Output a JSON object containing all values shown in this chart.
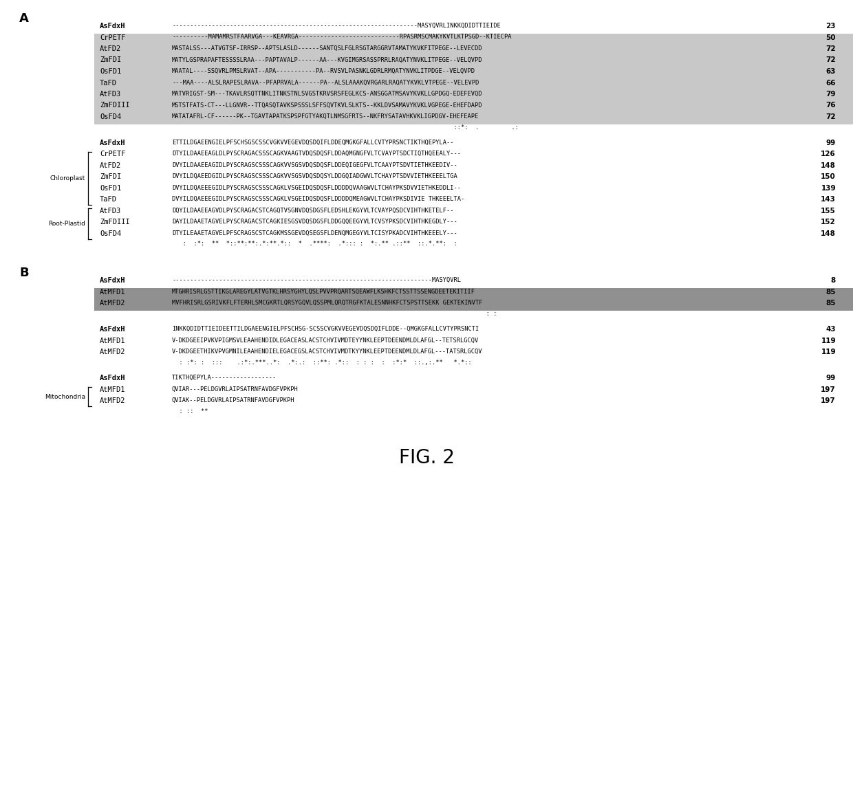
{
  "title": "FIG. 2",
  "bg_color": "#ffffff",
  "highlight_gray": "#c8c8c8",
  "highlight_dark": "#909090",
  "section_A_block1_rows": [
    {
      "name": "AsFdxH",
      "seq": "--------------------------------------------------------------------MASYQVRLINKKQDIDTTIEIDE",
      "num": "23",
      "bold": true,
      "hl": false
    },
    {
      "name": "CrPETF",
      "seq": "----------MAMAMRSTFAARVGA---KEAVRGA----------------------------RPASRMSCMAKYKVTLKTPSGD--KTIECPA",
      "num": "50",
      "bold": false,
      "hl": true
    },
    {
      "name": "AtFD2",
      "seq": "MASTALSS---ATVGTSF-IRRSP--APTSLASLD------SANTQSLFGLRSGTARGGRVTAMATYKVKFITPEGE--LEVECDD",
      "num": "72",
      "bold": false,
      "hl": true
    },
    {
      "name": "ZmFDI",
      "seq": "MATYLGSPRAPAFTESSSSLRAA---PAPTAVALP------AA---KVGIMGRSASSPRRLRAQATYNVKLITPEGE--VELQVPD",
      "num": "72",
      "bold": false,
      "hl": true
    },
    {
      "name": "OsFD1",
      "seq": "MAATAL----SSQVRLPMSLRVAT--APA-----------PA--RVSVLPASNKLGDRLRMQATYNVKLITPDGE--VELQVPD",
      "num": "63",
      "bold": false,
      "hl": true
    },
    {
      "name": "TaFD",
      "seq": "---MAA----ALSLRAPESLRAVA--PFAPRVALA------PA--ALSLAAAKQVRGARLRAQATYKVKLVTPEGE--VELEVPD",
      "num": "66",
      "bold": false,
      "hl": true
    },
    {
      "name": "AtFD3",
      "seq": "MATVRIGST-SM---TKAVLRSQTTNKLITNKSTNLSVGSTKRVSRSFEGLKCS-ANSGGATMSAVYKVKLLGPDGQ-EDEFEVQD",
      "num": "79",
      "bold": false,
      "hl": true
    },
    {
      "name": "ZmFDIII",
      "seq": "MSTSTFATS-CT---LLGNVR--TTQASQTAVKSPSSSLSFFSQVTKVLSLKTS--KKLDVSAMAVYKVKLVGPEGE-EHEFDAPD",
      "num": "76",
      "bold": false,
      "hl": true
    },
    {
      "name": "OsFD4",
      "seq": "MATATAFRL-CF------PK--TGAVTAPATKSPSPFGTYAKQTLNMSGFRTS--NKFRYSATAVHKVKLIGPDGV-EHEFEAPE",
      "num": "72",
      "bold": false,
      "hl": true
    }
  ],
  "section_A_block1_cons": "                                                                              ::*:  .         .:",
  "section_A_block2_rows": [
    {
      "name": "AsFdxH",
      "seq": "ETTILDGAEENGIELPFSCHSGSCSSСVGKVVEGEVDQSDQIFLDDЕQMGKGFALLCVTYPRSNCTIKTHQEPYLA--",
      "num": "99",
      "bold": true,
      "hl": false
    },
    {
      "name": "CrPETF",
      "seq": "DTYILDAAEEAGLDLPYSCRAGACSSSСAGKVAAGTVDQSDQSFLDDAQMGNGFVLTCVAYPTSDCTIQTHQEEALY---",
      "num": "126",
      "bold": false,
      "hl": false
    },
    {
      "name": "AtFD2",
      "seq": "DVYILDAAEEAGIDLPYSCRAGSCSSSСAGKVVSGSVDQSDQSFLDDЕQIGEGFVLTCAAYPTSDVTIETHKEEDIV--",
      "num": "148",
      "bold": false,
      "hl": false
    },
    {
      "name": "ZmFDI",
      "seq": "DVYILDQAEEDGIDLPYSCRAGSCSSSСAGKVVSGSVDQSDQSYLDDGQIADGWVLTCHAYPTSDVVIETHKEEELTGA",
      "num": "150",
      "bold": false,
      "hl": false
    },
    {
      "name": "OsFD1",
      "seq": "DVYILDQAEEEGIDLPYSCRAGSCSSSСAGKLVSGEIDQSDQSFLDDDDQVAAGWVLTCHAYPKSDVVIETHKEDDLI--",
      "num": "139",
      "bold": false,
      "hl": false
    },
    {
      "name": "TaFD",
      "seq": "DVYILDQAEEEGIDLPYSCRAGSCSSSСAGKLVSGEIDQSDQSFLDDDDQMEAGWVLTCHAYPKSDIVIE THKEEELTA-",
      "num": "143",
      "bold": false,
      "hl": false
    },
    {
      "name": "AtFD3",
      "seq": "DQYILDAAEЕAGVDLPYSCRAGACSTCAGQTVSGNVDQSDGSFLEDSHLEKGYVLTCVAYPQSDCVIHTHKETELF--",
      "num": "155",
      "bold": false,
      "hl": false
    },
    {
      "name": "ZmFDIII",
      "seq": "DAYILDAAETAGVELPYSCRAGACSTCAGKIESGSVDQSDGSFLDDGQQEEGYVLTCVSYPKSDCVIHTHKEGDLY---",
      "num": "152",
      "bold": false,
      "hl": false
    },
    {
      "name": "OsFD4",
      "seq": "DTYILEAAETAGVELPFSCRAGSCSTCAGKMSSGEVDQSEGSFLDENQMGEGYVLTCISYPKADCVIHTHKEEELY---",
      "num": "148",
      "bold": false,
      "hl": false
    }
  ],
  "section_A_block2_cons": "   :  :*:  **  *::**:**:.*:**.*::  *  .****:  .*::: :  *:.** .::**  ::.*.**:  :",
  "chloroplast_rows": [
    1,
    2,
    3,
    4,
    5
  ],
  "root_plastid_rows": [
    6,
    7,
    8
  ],
  "section_B_block1_rows": [
    {
      "name": "AsFdxH",
      "seq": "------------------------------------------------------------------------MASYQVRL",
      "num": "8",
      "bold": true,
      "hl": false
    },
    {
      "name": "AtMFD1",
      "seq": "MTGHRISRLGSTTIKGLAREGYLATVGTKLHRSYGHYLQSLPVVPRQARTSQEAWFLKSHKFCTSSTTSSENGDEETEKITIIF",
      "num": "85",
      "bold": false,
      "hl": true
    },
    {
      "name": "AtMFD2",
      "seq": "MVFHRISRLGSRIVKFLFTERHLSMCGKRTLQRSYGQVLQSSPMLQRQTRGFKTALESNNHKFCTSPSTTSEKK GEKTEKINVTF",
      "num": "85",
      "bold": false,
      "hl": true
    }
  ],
  "section_B_block1_cons": "                                                                                       : :",
  "section_B_block2_rows": [
    {
      "name": "AsFdxH",
      "seq": "INKKQDIDTTIEIDEETTILDGAEENGIELPFSCHSG-SCSSCVGKVVEGEVDQSDQIFLDDE--QMGKGFALLCVTYPRSNCTІ",
      "num": "43",
      "bold": true,
      "hl": false
    },
    {
      "name": "AtMFD1",
      "seq": "V-DKDGEEIPVKVPIGMSVLEAAHENDIDLEGACEASLACSTCHVIVMDTEYYNKLEEPTDEENDMLDLAFGL--TETSRLGCQV",
      "num": "119",
      "bold": false,
      "hl": false
    },
    {
      "name": "AtMFD2",
      "seq": "V-DKDGEETHIKVPVGMNILEAAHENDIELEGACEGSLACSTCHVIVMDTKYYNKLEEPTDEENDMLDLAFGL---TATSRLGCQV",
      "num": "119",
      "bold": false,
      "hl": false
    }
  ],
  "section_B_block2_cons": "  : :*: :  :::    .:*:.***..*:  .*:.:  ::**: .*::  : : :  :  :*:*  ::.,:.**   *.*::",
  "section_B_block3_rows": [
    {
      "name": "AsFdxH",
      "seq": "TIKTHQEPYLA------------------",
      "num": "99",
      "bold": true,
      "hl": false
    },
    {
      "name": "AtMFD1",
      "seq": "QVIAR---PELDGVRLAIPSATRNFAVDGFVPKPH",
      "num": "197",
      "bold": false,
      "hl": false
    },
    {
      "name": "AtMFD2",
      "seq": "QVIAK--PELDGVRLAIPSATRNFAVDGFVPKPH",
      "num": "197",
      "bold": false,
      "hl": false
    }
  ],
  "section_B_block3_cons": "  : ::  **",
  "mitochondria_rows": [
    1,
    2
  ]
}
